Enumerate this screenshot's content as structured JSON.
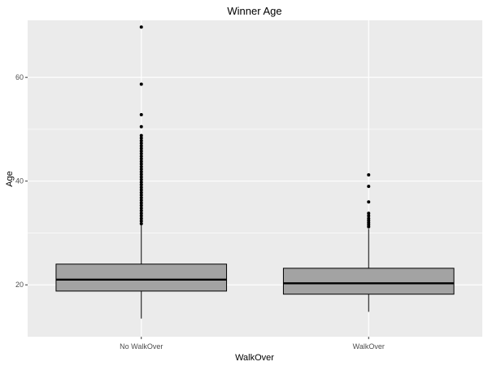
{
  "chart_data": {
    "type": "boxplot",
    "title": "Winner Age",
    "xlabel": "WalkOver",
    "ylabel": "Age",
    "categories": [
      "No WalkOver",
      "WalkOver"
    ],
    "ylim": [
      10,
      71
    ],
    "yticks": [
      20,
      40,
      60
    ],
    "grid": true,
    "legend": "none",
    "colors": {
      "box_fill": "#a3a3a3",
      "panel_bg": "#ebebeb",
      "grid": "#ffffff"
    },
    "boxes": [
      {
        "category": "No WalkOver",
        "whisker_low": 13.5,
        "q1": 18.8,
        "median": 21.0,
        "q3": 24.0,
        "whisker_high": 31.5,
        "outliers": [
          31.8,
          32.3,
          32.8,
          33.3,
          33.8,
          34.3,
          34.8,
          35.3,
          35.8,
          36.3,
          36.8,
          37.3,
          37.8,
          38.3,
          38.8,
          39.3,
          39.8,
          40.3,
          40.8,
          41.3,
          41.8,
          42.3,
          42.8,
          43.3,
          43.8,
          44.3,
          44.8,
          45.3,
          45.8,
          46.3,
          46.8,
          47.3,
          47.8,
          48.3,
          48.8,
          50.5,
          52.8,
          58.7,
          69.7
        ]
      },
      {
        "category": "WalkOver",
        "whisker_low": 14.8,
        "q1": 18.2,
        "median": 20.3,
        "q3": 23.2,
        "whisker_high": 30.8,
        "outliers": [
          31.2,
          31.6,
          32.0,
          32.4,
          32.8,
          33.3,
          33.8,
          36.0,
          39.0,
          41.2
        ]
      }
    ]
  }
}
